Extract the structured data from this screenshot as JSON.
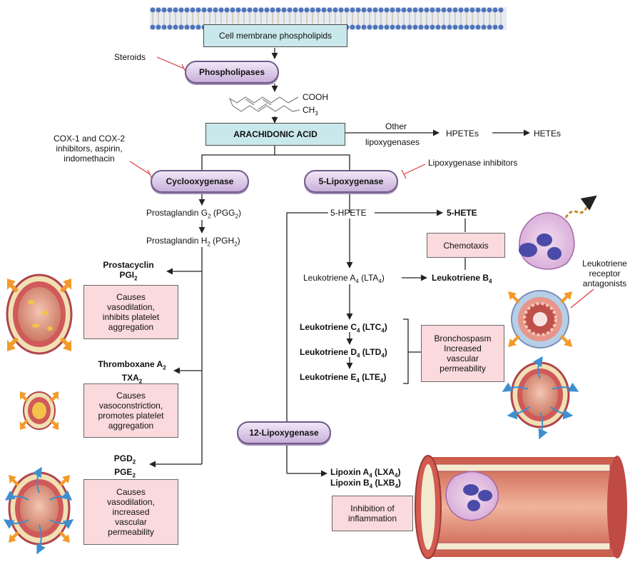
{
  "membrane": {
    "label": "Cell membrane phospholipids"
  },
  "inhibitors": {
    "steroids": "Steroids",
    "cox_line1": "COX-1 and COX-2",
    "cox_line2": "inhibitors, aspirin,",
    "cox_line3": "indomethacin",
    "lipoxygenase": "Lipoxygenase inhibitors",
    "receptor_line1": "Leukotriene",
    "receptor_line2": "receptor",
    "receptor_line3": "antagonists"
  },
  "enzymes": {
    "phospholipases": "Phospholipases",
    "cyclooxygenase": "Cyclooxygenase",
    "lipoxygenase5": "5-Lipoxygenase",
    "lipoxygenase12": "12-Lipoxygenase"
  },
  "molecule": {
    "cooh": "COOH",
    "ch3_main": "CH",
    "ch3_sub": "3"
  },
  "arachidonic": {
    "label": "ARACHIDONIC ACID"
  },
  "other_pathway": {
    "other": "Other",
    "lipox": "lipoxygenases",
    "hpetes": "HPETEs",
    "hetes": "HETEs"
  },
  "cox_pathway": {
    "pgg2": {
      "a": "Prostaglandin G",
      "s1": "2",
      "b": " (PGG",
      "s2": "2",
      "c": ")"
    },
    "pgh2": {
      "a": "Prostaglandin H",
      "s1": "2",
      "b": " (PGH",
      "s2": "2",
      "c": ")"
    },
    "prostacyclin": {
      "name": "Prostacyclin",
      "abbr": "PGI",
      "sub": "2",
      "effect1": "Causes",
      "effect2": "vasodilation,",
      "effect3": "inhibits platelet",
      "effect4": "aggregation"
    },
    "thromboxane": {
      "name": "Thromboxane A",
      "name_sub": "2",
      "abbr": "TXA",
      "sub": "2",
      "effect1": "Causes",
      "effect2": "vasoconstriction,",
      "effect3": "promotes platelet",
      "effect4": "aggregation"
    },
    "pgd_pge": {
      "pgd": "PGD",
      "pgd_sub": "2",
      "pge": "PGE",
      "pge_sub": "2",
      "effect1": "Causes",
      "effect2": "vasodilation,",
      "effect3": "increased",
      "effect4": "vascular",
      "effect5": "permeability"
    }
  },
  "lox_pathway": {
    "hpete5": "5-HPETE",
    "hete5": "5-HETE",
    "chemotaxis": "Chemotaxis",
    "lta4": {
      "a": "Leukotriene A",
      "s1": "4",
      "b": " (LTA",
      "s2": "4",
      "c": ")"
    },
    "ltb4": {
      "a": "Leukotriene B",
      "s1": "4"
    },
    "ltc4": {
      "a": "Leukotriene C",
      "s1": "4",
      "b": " (LTC",
      "s2": "4",
      "c": ")"
    },
    "ltd4": {
      "a": "Leukotriene D",
      "s1": "4",
      "b": " (LTD",
      "s2": "4",
      "c": ")"
    },
    "lte4": {
      "a": "Leukotriene E",
      "s1": "4",
      "b": " (LTE",
      "s2": "4",
      "c": ")"
    },
    "effect1": "Bronchospasm",
    "effect2": "Increased",
    "effect3": "vascular",
    "effect4": "permeability",
    "lxa4": {
      "a": "Lipoxin A",
      "s1": "4",
      "b": " (LXA",
      "s2": "4",
      "c": ")"
    },
    "lxb4": {
      "a": "Lipoxin B",
      "s1": "4",
      "b": " (LXB",
      "s2": "4",
      "c": ")"
    },
    "inhibition1": "Inhibition of",
    "inhibition2": "inflammation"
  },
  "colors": {
    "arrow": "#222222",
    "inhibitor_line": "#d93a3a",
    "pill_border": "#6f5a88",
    "box_pink": "#fadadc",
    "box_cyan": "#c9e8ec",
    "vessel": "#c9404a",
    "membrane_head": "#4f74b8",
    "orange": "#f39a2a",
    "blue_arrow": "#3d8fd0"
  }
}
